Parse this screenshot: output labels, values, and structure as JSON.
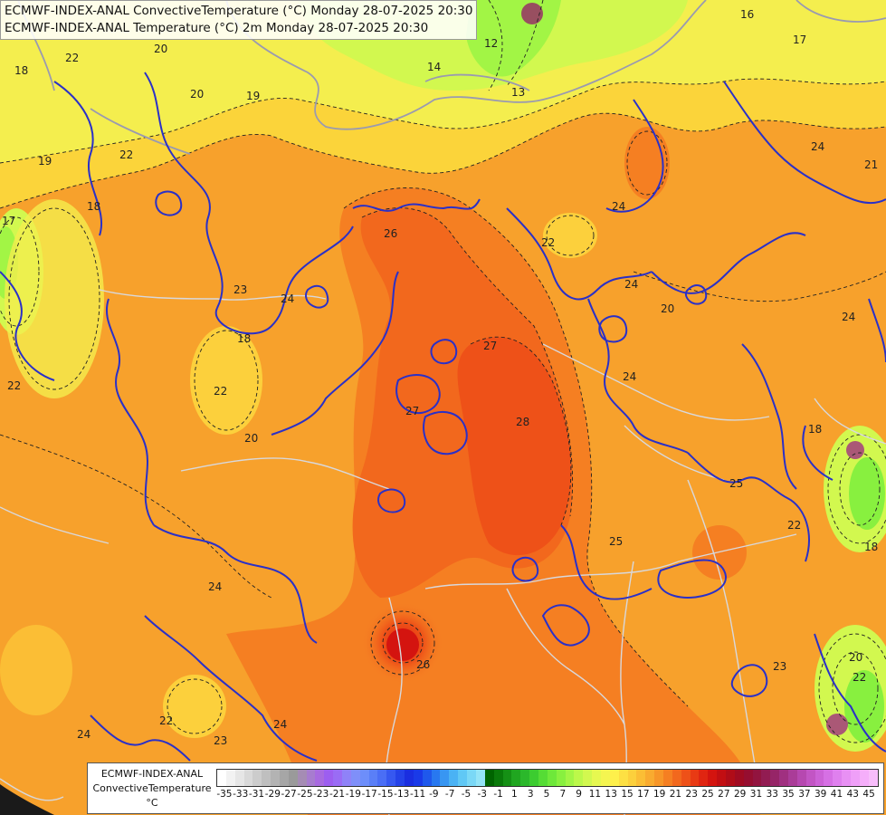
{
  "titles": {
    "line1": "ECMWF-INDEX-ANAL ConvectiveTemperature (°C) Monday 28-07-2025 20:30",
    "line2": "ECMWF-INDEX-ANAL Temperature (°C) 2m Monday 28-07-2025 20:30"
  },
  "legend": {
    "title_line1": "ECMWF-INDEX-ANAL",
    "title_line2": "ConvectiveTemperature",
    "unit": "°C",
    "ticks": [
      "-35",
      "-33",
      "-31",
      "-29",
      "-27",
      "-25",
      "-23",
      "-21",
      "-19",
      "-17",
      "-15",
      "-13",
      "-11",
      "-9",
      "-7",
      "-5",
      "-3",
      "-1",
      "1",
      "3",
      "5",
      "7",
      "9",
      "11",
      "13",
      "15",
      "17",
      "19",
      "21",
      "23",
      "25",
      "27",
      "29",
      "31",
      "33",
      "35",
      "37",
      "39",
      "41",
      "43",
      "45"
    ],
    "colors": [
      "#ffffff",
      "#f2f2f2",
      "#e6e6e6",
      "#d9d9d9",
      "#cccccc",
      "#bfbfbf",
      "#b3b3b3",
      "#a6a6a6",
      "#9a9a9a",
      "#a58cb4",
      "#a77ccf",
      "#a86ae0",
      "#9d5ef0",
      "#9a6cf5",
      "#8f82f8",
      "#7f8ff9",
      "#6d8efa",
      "#5a7ff7",
      "#4a6ef5",
      "#3658f0",
      "#2442e8",
      "#1a2ee0",
      "#1a3ae8",
      "#1f58ec",
      "#2878f0",
      "#3896f2",
      "#4ab2f4",
      "#60c8f5",
      "#7ad8f6",
      "#94e4f7",
      "#006400",
      "#0a7a0a",
      "#159015",
      "#20a620",
      "#2bb82b",
      "#3ccc30",
      "#55dc35",
      "#6ee83a",
      "#88f03f",
      "#a2f545",
      "#bcf84a",
      "#d2f84f",
      "#e6f850",
      "#f4f550",
      "#fef04b",
      "#fde043",
      "#fcd03c",
      "#fbbe35",
      "#f9ab2f",
      "#f79628",
      "#f57f22",
      "#f2681d",
      "#ee5118",
      "#e83a14",
      "#e02511",
      "#d4140f",
      "#c20e12",
      "#b00c18",
      "#a00b22",
      "#960e30",
      "#92143f",
      "#921c52",
      "#962567",
      "#a03080",
      "#aa3c98",
      "#b648b0",
      "#c255c4",
      "#cc62d6",
      "#d670e4",
      "#df80ee",
      "#e890f4",
      "#ef9ff8",
      "#f5aefa",
      "#f8bdfb"
    ]
  },
  "map": {
    "contour_labels": [
      "22",
      "20",
      "19",
      "18",
      "19",
      "20",
      "22",
      "16",
      "17",
      "14",
      "13",
      "12",
      "24",
      "23",
      "24",
      "18",
      "22",
      "20",
      "26",
      "27",
      "28",
      "27",
      "25",
      "24",
      "25",
      "22",
      "18",
      "24",
      "24",
      "22",
      "24",
      "23",
      "24",
      "26",
      "24",
      "20",
      "22",
      "24",
      "18",
      "20",
      "22",
      "23",
      "17",
      "18",
      "21",
      "22"
    ]
  }
}
